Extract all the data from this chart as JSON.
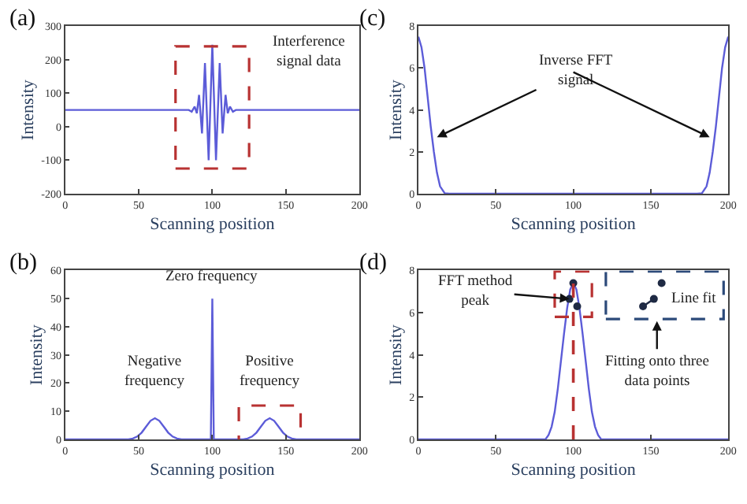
{
  "chart_data": [
    {
      "type": "line",
      "title": "(a)",
      "xlabel": "Scanning position",
      "ylabel": "Intensity",
      "xlim": [
        0,
        200
      ],
      "xticks": [
        0,
        50,
        100,
        150,
        200
      ],
      "ylim": [
        -200,
        300
      ],
      "yticks": [
        -200,
        -100,
        0,
        100,
        200,
        300
      ],
      "series": [
        {
          "color": "#5c5cd8",
          "x": [
            0,
            50,
            60,
            70,
            80,
            84,
            86,
            88,
            89.5,
            91,
            93,
            95,
            97.5,
            100,
            102.5,
            105,
            107,
            109,
            110.5,
            112,
            114,
            116,
            120,
            130,
            150,
            200
          ],
          "values": [
            50,
            50,
            50,
            50,
            50,
            50,
            45,
            60,
            40,
            95,
            -20,
            190,
            -100,
            245,
            -100,
            190,
            -20,
            95,
            40,
            60,
            45,
            50,
            50,
            50,
            50,
            50
          ]
        }
      ],
      "annotations": [
        "Interference\nsignal data"
      ]
    },
    {
      "type": "line",
      "title": "(c)",
      "xlabel": "Scanning position",
      "ylabel": "Intensity",
      "xlim": [
        0,
        200
      ],
      "xticks": [
        0,
        50,
        100,
        150,
        200
      ],
      "ylim": [
        0,
        8
      ],
      "yticks": [
        0,
        2,
        4,
        6,
        8
      ],
      "series": [
        {
          "color": "#5c5cd8",
          "x": [
            0,
            2,
            4,
            6,
            8,
            10,
            12,
            14,
            17,
            20,
            100,
            180,
            183,
            186,
            188,
            190,
            192,
            194,
            196,
            198,
            200
          ],
          "values": [
            7.5,
            7.0,
            6.0,
            4.6,
            3.2,
            2.0,
            1.0,
            0.35,
            0.02,
            0,
            0,
            0,
            0.02,
            0.35,
            1.0,
            2.0,
            3.2,
            4.6,
            6.0,
            7.0,
            7.5
          ]
        }
      ],
      "annotations": [
        {
          "text": "Inverse FFT\nsignal",
          "x": 12,
          "y": 2.7
        }
      ]
    },
    {
      "type": "line",
      "title": "(b)",
      "xlabel": "Scanning position",
      "ylabel": "Intensity",
      "xlim": [
        0,
        200
      ],
      "xticks": [
        0,
        50,
        100,
        150,
        200
      ],
      "ylim": [
        0,
        60
      ],
      "yticks": [
        0,
        10,
        20,
        30,
        40,
        50,
        60
      ],
      "series": [
        {
          "color": "#5c5cd8",
          "x": [
            0,
            43,
            46,
            49,
            52,
            55,
            58,
            61,
            64,
            67,
            70,
            73,
            76,
            79,
            99,
            100,
            101,
            121,
            124,
            127,
            130,
            133,
            136,
            139,
            142,
            145,
            148,
            151,
            154,
            157,
            200
          ],
          "values": [
            0,
            0,
            0.3,
            1.0,
            2.4,
            4.5,
            6.6,
            7.5,
            6.6,
            4.5,
            2.4,
            1.0,
            0.3,
            0,
            0,
            50,
            0,
            0,
            0.3,
            1.0,
            2.4,
            4.5,
            6.6,
            7.5,
            6.6,
            4.5,
            2.4,
            1.0,
            0.3,
            0,
            0
          ]
        }
      ],
      "annotations": [
        {
          "text": "Zero frequency",
          "x": 100,
          "y": 50
        },
        {
          "text": "Negative\nfrequency",
          "x": 61,
          "y": 7.5
        },
        {
          "text": "Positive\nfrequency",
          "x": 139,
          "y": 7.5
        }
      ]
    },
    {
      "type": "line",
      "title": "(d)",
      "xlabel": "Scanning position",
      "ylabel": "Intensity",
      "xlim": [
        0,
        200
      ],
      "xticks": [
        0,
        50,
        100,
        150,
        200
      ],
      "ylim": [
        0,
        8
      ],
      "yticks": [
        0,
        2,
        4,
        6,
        8
      ],
      "series": [
        {
          "color": "#5c5cd8",
          "x": [
            0,
            82,
            84,
            86,
            88,
            90,
            92,
            94,
            96,
            98,
            100,
            102,
            104,
            106,
            108,
            110,
            112,
            114,
            116,
            118,
            200
          ],
          "values": [
            0,
            0,
            0.2,
            0.6,
            1.3,
            2.4,
            3.7,
            5.0,
            6.2,
            7.1,
            7.4,
            7.1,
            6.2,
            5.0,
            3.7,
            2.4,
            1.3,
            0.6,
            0.2,
            0,
            0
          ]
        },
        {
          "type": "scatter",
          "color": "#1f2a44",
          "marker": "circle",
          "x": [
            97.5,
            100,
            102.5
          ],
          "values": [
            6.65,
            7.4,
            6.3
          ]
        },
        {
          "type": "line",
          "color": "#1f2a44",
          "marker": "circle",
          "line_style": "dashed",
          "x": [
            145,
            152,
            157
          ],
          "values": [
            6.3,
            6.65,
            7.4
          ]
        }
      ],
      "ref_lines": [
        {
          "axis": "x",
          "value": 100,
          "color": "#b83232",
          "line_style": "dashed"
        }
      ],
      "annotations": [
        {
          "text": "FFT method\npeak",
          "x": 97.5,
          "y": 6.65
        },
        {
          "text": "Line fit",
          "x": 152,
          "y": 6.65
        },
        "Fitting onto three\ndata points"
      ]
    }
  ]
}
